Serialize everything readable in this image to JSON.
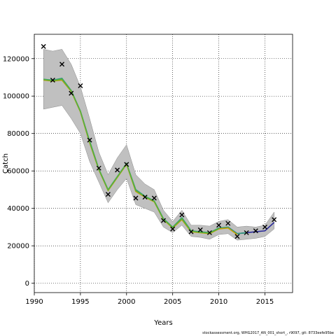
{
  "chart_data": {
    "type": "line",
    "title": "",
    "xlabel": "Years",
    "ylabel": "Catch",
    "xlim": [
      1990,
      2018
    ],
    "ylim": [
      -5000,
      133000
    ],
    "xticks": [
      1990,
      1995,
      2000,
      2005,
      2010,
      2015
    ],
    "yticks": [
      0,
      20000,
      40000,
      60000,
      80000,
      100000,
      120000
    ],
    "grid": true,
    "band": {
      "x": [
        1991,
        1992,
        1993,
        1994,
        1995,
        1996,
        1997,
        1998,
        1999,
        2000,
        2001,
        2002,
        2003,
        2004,
        2005,
        2006,
        2007,
        2008,
        2009,
        2010,
        2011,
        2012,
        2013,
        2014,
        2015,
        2016
      ],
      "lower": [
        93000,
        94000,
        95000,
        88000,
        80000,
        65000,
        54000,
        43000,
        50000,
        56000,
        42000,
        40000,
        38000,
        30000,
        27000,
        31000,
        25000,
        24500,
        23500,
        26000,
        26500,
        23000,
        23500,
        24000,
        25000,
        29000
      ],
      "upper": [
        125000,
        124000,
        125000,
        117000,
        105000,
        88000,
        70000,
        58000,
        67000,
        74000,
        58000,
        53000,
        50000,
        39000,
        33000,
        39000,
        31000,
        31000,
        30500,
        33000,
        34000,
        30000,
        30500,
        30000,
        31000,
        38000
      ],
      "color": "#c0c0c0"
    },
    "series": [
      {
        "color": "#2b2b9a",
        "x": [
          2011,
          2012,
          2013,
          2014,
          2015,
          2016
        ],
        "values": [
          30000,
          26500,
          27000,
          27500,
          28000,
          32500
        ]
      },
      {
        "color": "#2e9a7a",
        "x": [
          1991,
          1992,
          1993,
          1994,
          1995,
          1996,
          1997,
          1998,
          1999,
          2000,
          2001,
          2002,
          2003,
          2004,
          2005,
          2006,
          2007,
          2008,
          2009,
          2010,
          2011,
          2012,
          2013
        ],
        "values": [
          109000,
          108500,
          109500,
          103000,
          92000,
          76000,
          61000,
          50000,
          57000,
          64000,
          50000,
          46500,
          44000,
          34500,
          30000,
          35000,
          28000,
          27500,
          27000,
          29500,
          30000,
          26500,
          27000
        ]
      },
      {
        "color": "#c8a000",
        "x": [
          1991,
          1992,
          1993,
          1994,
          1995,
          1996,
          1997,
          1998,
          1999,
          2000,
          2001,
          2002,
          2003,
          2004,
          2005,
          2006,
          2007,
          2008,
          2009,
          2010,
          2011,
          2012
        ],
        "values": [
          108500,
          108000,
          108500,
          102500,
          91500,
          75000,
          60500,
          49500,
          56500,
          63500,
          49000,
          46000,
          43500,
          34000,
          29500,
          34000,
          27500,
          27000,
          26500,
          29000,
          29500,
          26000
        ]
      },
      {
        "color": "#5ab03a",
        "x": [
          1991,
          1992,
          1993,
          1994,
          1995,
          1996,
          1997,
          1998,
          1999,
          2000,
          2001,
          2002,
          2003,
          2004,
          2005,
          2006,
          2007,
          2008,
          2009,
          2010
        ],
        "values": [
          108800,
          108200,
          109000,
          102800,
          91800,
          75500,
          60800,
          49800,
          56800,
          63800,
          49500,
          46200,
          43800,
          34200,
          29800,
          34500,
          27800,
          27200,
          26800,
          29200
        ]
      }
    ],
    "observed": {
      "marker": "x",
      "x": [
        1991,
        1992,
        1993,
        1994,
        1995,
        1996,
        1997,
        1998,
        1999,
        2000,
        2001,
        2002,
        2003,
        2004,
        2005,
        2006,
        2007,
        2008,
        2009,
        2010,
        2011,
        2012,
        2013,
        2014,
        2015,
        2016
      ],
      "values": [
        126500,
        108500,
        117000,
        101500,
        105500,
        76500,
        61500,
        47500,
        60500,
        63500,
        45500,
        46000,
        45500,
        33500,
        29000,
        36500,
        27500,
        28500,
        27000,
        31000,
        32000,
        25000,
        27000,
        28000,
        30000,
        34000
      ]
    }
  },
  "footer": "stockassessment.org, WHG2017_AN_001_short_, r9097, git: 8733eefe95be"
}
